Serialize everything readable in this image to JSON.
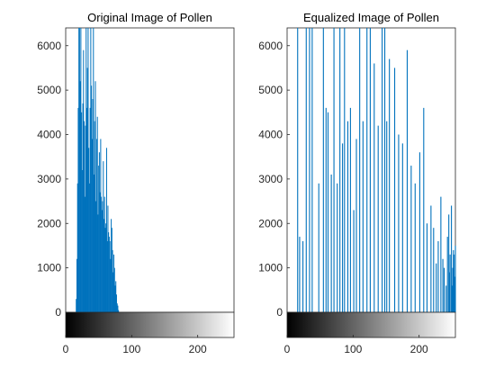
{
  "chart_data": [
    {
      "type": "bar",
      "title": "Original Image of Pollen",
      "xlabel": "",
      "ylabel": "",
      "xlim": [
        0,
        255
      ],
      "ylim": [
        0,
        6400
      ],
      "xticks": [
        0,
        100,
        200
      ],
      "yticks": [
        0,
        1000,
        2000,
        3000,
        4000,
        5000,
        6000
      ],
      "colorbar": "grayscale, black to white",
      "bar_color": "#0072BD",
      "x": [
        16,
        17,
        18,
        19,
        20,
        21,
        22,
        23,
        24,
        25,
        26,
        27,
        28,
        29,
        30,
        31,
        32,
        33,
        34,
        35,
        36,
        37,
        38,
        39,
        40,
        41,
        42,
        43,
        44,
        45,
        46,
        47,
        48,
        49,
        50,
        51,
        52,
        53,
        54,
        55,
        56,
        57,
        58,
        59,
        60,
        61,
        62,
        63,
        64,
        65,
        66,
        67,
        68,
        69,
        70,
        71,
        72,
        73,
        74,
        75,
        76,
        77,
        78,
        79,
        80
      ],
      "values": [
        300,
        1200,
        2900,
        4600,
        6400,
        6400,
        5200,
        6400,
        4500,
        3200,
        4700,
        5900,
        4300,
        2600,
        4200,
        6400,
        4600,
        5500,
        6400,
        3700,
        2900,
        4600,
        6400,
        5100,
        3900,
        4800,
        6400,
        3100,
        4300,
        5200,
        2500,
        3900,
        4400,
        2200,
        3300,
        3600,
        2700,
        3900,
        2600,
        2300,
        2500,
        3400,
        2100,
        2600,
        1900,
        2000,
        3700,
        1600,
        2400,
        1800,
        1700,
        1600,
        1200,
        2100,
        1900,
        1400,
        900,
        1300,
        1000,
        600,
        700,
        400,
        200,
        150,
        50
      ],
      "grid": false,
      "legend": "none"
    },
    {
      "type": "bar",
      "title": "Equalized Image of Pollen",
      "xlabel": "",
      "ylabel": "",
      "xlim": [
        0,
        255
      ],
      "ylim": [
        0,
        6400
      ],
      "xticks": [
        0,
        100,
        200
      ],
      "yticks": [
        0,
        1000,
        2000,
        3000,
        4000,
        5000,
        6000
      ],
      "colorbar": "grayscale, black to white",
      "bar_color": "#0072BD",
      "x": [
        16,
        19,
        24,
        29,
        34,
        38,
        48,
        55,
        59,
        62,
        67,
        71,
        76,
        80,
        84,
        87,
        92,
        96,
        101,
        105,
        110,
        115,
        121,
        126,
        132,
        138,
        144,
        148,
        151,
        155,
        163,
        169,
        175,
        182,
        188,
        194,
        201,
        207,
        212,
        218,
        222,
        226,
        229,
        233,
        236,
        238,
        241,
        243,
        245,
        246,
        247,
        249,
        250,
        251,
        252,
        253,
        254,
        255
      ],
      "values": [
        6400,
        1700,
        1600,
        6400,
        6400,
        6400,
        2900,
        6400,
        4600,
        4500,
        3100,
        6400,
        2900,
        6400,
        3800,
        6400,
        4300,
        4600,
        2300,
        3900,
        6400,
        4300,
        6400,
        6400,
        5600,
        4200,
        6400,
        6400,
        4300,
        5700,
        5500,
        4000,
        3800,
        5900,
        3300,
        2900,
        3600,
        4600,
        2000,
        2400,
        1900,
        1100,
        1600,
        2600,
        1200,
        1000,
        600,
        1700,
        2200,
        900,
        1300,
        2400,
        600,
        1000,
        1400,
        1300,
        800,
        1500
      ],
      "grid": false,
      "legend": "none"
    }
  ]
}
